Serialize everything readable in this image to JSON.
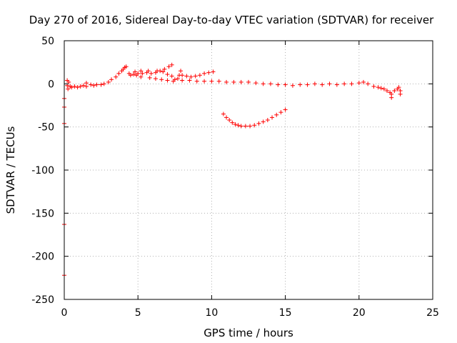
{
  "chart_data": {
    "type": "scatter",
    "title": "Day 270 of 2016, Sidereal Day-to-day VTEC variation (SDTVAR) for receiver",
    "xlabel": "GPS time / hours",
    "ylabel": "SDTVAR / TECUs",
    "xlim": [
      0,
      25
    ],
    "ylim": [
      -250,
      50
    ],
    "xticks": [
      0,
      5,
      10,
      15,
      20,
      25
    ],
    "yticks": [
      50,
      0,
      -50,
      -100,
      -150,
      -200,
      -250
    ],
    "grid": true,
    "legend": "none",
    "marker": "plus",
    "color": "#ff0000",
    "series": [
      {
        "points": [
          [
            0.0,
            -17
          ],
          [
            0.0,
            -27
          ],
          [
            0.0,
            -46
          ],
          [
            0.0,
            -163
          ],
          [
            0.0,
            -222
          ],
          [
            0.2,
            4
          ],
          [
            0.2,
            -2
          ],
          [
            0.25,
            -6
          ],
          [
            0.3,
            2
          ],
          [
            0.4,
            -3
          ],
          [
            0.5,
            -4
          ],
          [
            0.7,
            -3
          ],
          [
            0.9,
            -4
          ],
          [
            1.1,
            -3
          ],
          [
            1.3,
            -2
          ],
          [
            1.5,
            -3
          ],
          [
            1.5,
            1
          ],
          [
            1.8,
            -1
          ],
          [
            2.0,
            -2
          ],
          [
            2.2,
            -1
          ],
          [
            2.5,
            -1
          ],
          [
            2.7,
            0
          ],
          [
            3.0,
            2
          ],
          [
            3.2,
            5
          ],
          [
            3.5,
            8
          ],
          [
            3.7,
            12
          ],
          [
            3.9,
            15
          ],
          [
            4.0,
            17
          ],
          [
            4.1,
            19
          ],
          [
            4.2,
            20
          ],
          [
            4.5,
            10
          ],
          [
            4.7,
            11
          ],
          [
            4.9,
            10
          ],
          [
            5.0,
            12
          ],
          [
            5.3,
            12
          ],
          [
            5.6,
            13
          ],
          [
            5.9,
            12
          ],
          [
            6.2,
            13
          ],
          [
            6.5,
            15
          ],
          [
            6.8,
            17
          ],
          [
            7.1,
            20
          ],
          [
            7.3,
            22
          ],
          [
            4.4,
            12
          ],
          [
            4.8,
            14
          ],
          [
            5.2,
            15
          ],
          [
            5.7,
            15
          ],
          [
            6.3,
            15
          ],
          [
            6.7,
            14
          ],
          [
            7.0,
            11
          ],
          [
            7.3,
            9
          ],
          [
            5.2,
            8
          ],
          [
            5.8,
            7
          ],
          [
            6.2,
            6
          ],
          [
            6.6,
            5
          ],
          [
            7.0,
            4
          ],
          [
            7.4,
            3
          ],
          [
            7.7,
            6
          ],
          [
            7.8,
            10
          ],
          [
            7.9,
            15
          ],
          [
            8.0,
            10
          ],
          [
            8.3,
            9
          ],
          [
            8.6,
            8
          ],
          [
            8.9,
            9
          ],
          [
            9.2,
            10
          ],
          [
            9.5,
            12
          ],
          [
            9.8,
            13
          ],
          [
            10.1,
            14
          ],
          [
            7.5,
            5
          ],
          [
            8.0,
            4
          ],
          [
            8.5,
            4
          ],
          [
            9.0,
            3
          ],
          [
            9.5,
            3
          ],
          [
            10.0,
            3
          ],
          [
            10.5,
            3
          ],
          [
            11.0,
            2
          ],
          [
            11.5,
            2
          ],
          [
            12.0,
            2
          ],
          [
            12.5,
            2
          ],
          [
            13.0,
            1
          ],
          [
            13.5,
            0
          ],
          [
            14.0,
            0
          ],
          [
            14.5,
            -1
          ],
          [
            15.0,
            -1
          ],
          [
            15.5,
            -2
          ],
          [
            16.0,
            -1
          ],
          [
            16.5,
            -1
          ],
          [
            17.0,
            0
          ],
          [
            17.5,
            -1
          ],
          [
            18.0,
            0
          ],
          [
            18.5,
            -1
          ],
          [
            19.0,
            0
          ],
          [
            19.5,
            0
          ],
          [
            20.0,
            1
          ],
          [
            20.3,
            2
          ],
          [
            20.6,
            0
          ],
          [
            21.0,
            -3
          ],
          [
            21.3,
            -4
          ],
          [
            21.5,
            -5
          ],
          [
            21.7,
            -6
          ],
          [
            21.9,
            -8
          ],
          [
            22.1,
            -10
          ],
          [
            22.2,
            -12
          ],
          [
            22.2,
            -16
          ],
          [
            22.4,
            -8
          ],
          [
            22.6,
            -6
          ],
          [
            22.7,
            -4
          ],
          [
            22.8,
            -8
          ],
          [
            22.8,
            -12
          ],
          [
            10.8,
            -35
          ],
          [
            11.0,
            -39
          ],
          [
            11.2,
            -42
          ],
          [
            11.4,
            -45
          ],
          [
            11.6,
            -47
          ],
          [
            11.8,
            -48
          ],
          [
            12.0,
            -49
          ],
          [
            12.3,
            -49
          ],
          [
            12.6,
            -49
          ],
          [
            12.9,
            -48
          ],
          [
            13.2,
            -46
          ],
          [
            13.5,
            -44
          ],
          [
            13.8,
            -42
          ],
          [
            14.1,
            -39
          ],
          [
            14.4,
            -36
          ],
          [
            14.7,
            -33
          ],
          [
            15.0,
            -30
          ]
        ]
      }
    ]
  }
}
